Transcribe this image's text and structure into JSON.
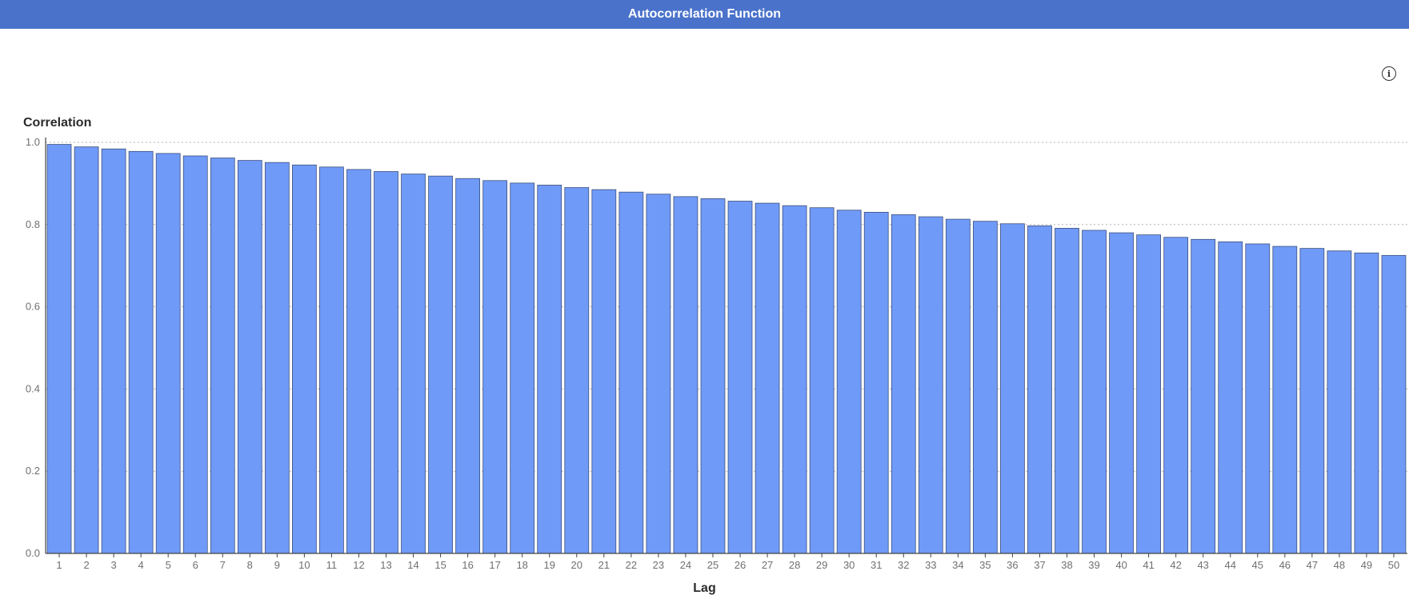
{
  "header": {
    "title": "Autocorrelation Function"
  },
  "icons": {
    "info": "info-icon",
    "info_glyph": "i"
  },
  "colors": {
    "header_bg": "#4a72cb",
    "bar_fill": "#6f9af8",
    "bar_stroke": "#3d4f7a"
  },
  "chart_data": {
    "type": "bar",
    "title": "",
    "xlabel": "Lag",
    "ylabel": "Correlation",
    "ylim": [
      0,
      1
    ],
    "yticks": [
      "0.0",
      "0.2",
      "0.4",
      "0.6",
      "0.8",
      "1.0"
    ],
    "grid": "horizontal dotted",
    "categories": [
      "1",
      "2",
      "3",
      "4",
      "5",
      "6",
      "7",
      "8",
      "9",
      "10",
      "11",
      "12",
      "13",
      "14",
      "15",
      "16",
      "17",
      "18",
      "19",
      "20",
      "21",
      "22",
      "23",
      "24",
      "25",
      "26",
      "27",
      "28",
      "29",
      "30",
      "31",
      "32",
      "33",
      "34",
      "35",
      "36",
      "37",
      "38",
      "39",
      "40",
      "41",
      "42",
      "43",
      "44",
      "45",
      "46",
      "47",
      "48",
      "49",
      "50"
    ],
    "values": [
      0.995,
      0.989,
      0.984,
      0.978,
      0.973,
      0.967,
      0.962,
      0.956,
      0.951,
      0.945,
      0.94,
      0.934,
      0.929,
      0.923,
      0.918,
      0.912,
      0.907,
      0.901,
      0.896,
      0.89,
      0.885,
      0.879,
      0.874,
      0.868,
      0.863,
      0.857,
      0.852,
      0.846,
      0.841,
      0.835,
      0.83,
      0.824,
      0.819,
      0.813,
      0.808,
      0.802,
      0.797,
      0.791,
      0.786,
      0.78,
      0.775,
      0.769,
      0.764,
      0.758,
      0.753,
      0.747,
      0.742,
      0.736,
      0.731,
      0.725
    ]
  }
}
